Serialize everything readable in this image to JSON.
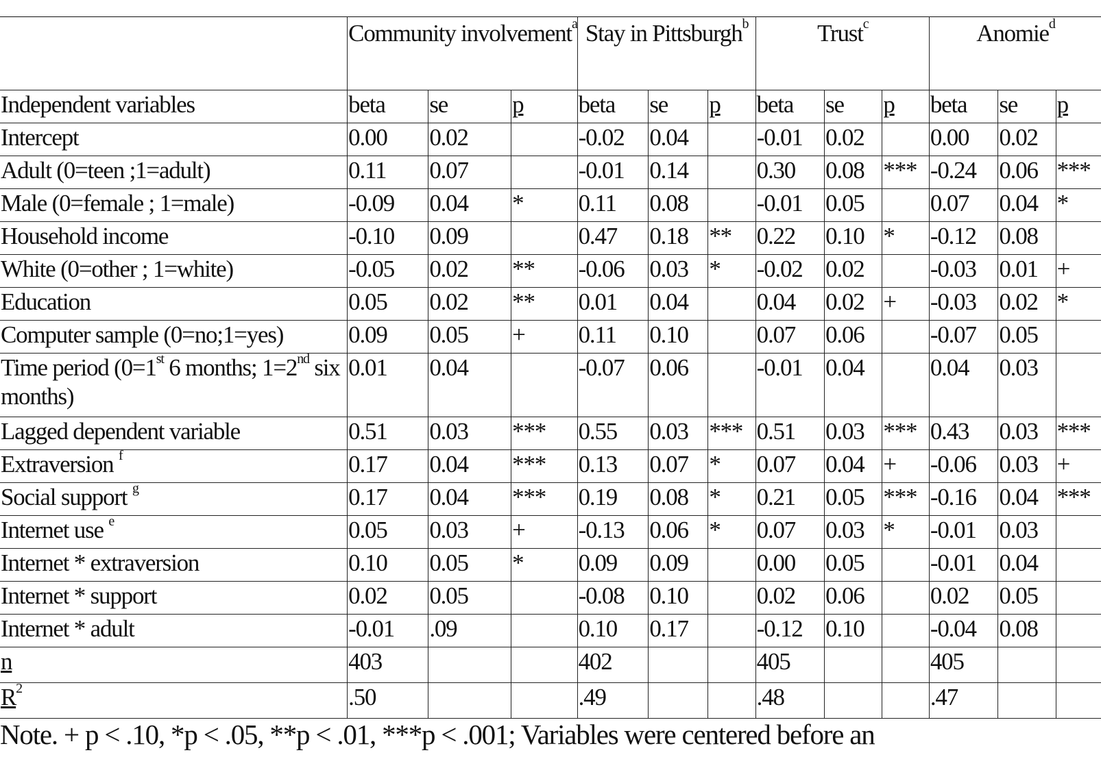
{
  "groups": [
    {
      "label": "Community involvement",
      "sup": "a"
    },
    {
      "label": "Stay in Pittsburgh",
      "sup": "b"
    },
    {
      "label": "Trust",
      "sup": "c"
    },
    {
      "label": "Anomie",
      "sup": "d"
    }
  ],
  "subheader": {
    "label": "Independent  variables",
    "cols": [
      "beta",
      "se",
      "p"
    ]
  },
  "rows": [
    {
      "label": "Intercept",
      "v": [
        "0.00",
        "0.02",
        "",
        "-0.02",
        "0.04",
        "",
        "-0.01",
        "0.02",
        "",
        "0.00",
        "0.02",
        ""
      ]
    },
    {
      "label": "Adult (0=teen ;1=adult)",
      "v": [
        "0.11",
        "0.07",
        "",
        "-0.01",
        "0.14",
        "",
        "0.30",
        "0.08",
        "***",
        "-0.24",
        "0.06",
        "***"
      ]
    },
    {
      "label": "Male (0=female ; 1=male)",
      "v": [
        "-0.09",
        "0.04",
        "*",
        "0.11",
        "0.08",
        "",
        "-0.01",
        "0.05",
        "",
        "0.07",
        "0.04",
        "*"
      ]
    },
    {
      "label": "Household income",
      "v": [
        "-0.10",
        "0.09",
        "",
        "0.47",
        "0.18",
        "**",
        "0.22",
        "0.10",
        "*",
        "-0.12",
        "0.08",
        ""
      ]
    },
    {
      "label": "White (0=other ; 1=white)",
      "v": [
        "-0.05",
        "0.02",
        "**",
        "-0.06",
        "0.03",
        "*",
        "-0.02",
        "0.02",
        "",
        "-0.03",
        "0.01",
        "+"
      ]
    },
    {
      "label": "Education",
      "v": [
        "0.05",
        "0.02",
        "**",
        "0.01",
        "0.04",
        "",
        "0.04",
        "0.02",
        "+",
        "-0.03",
        "0.02",
        "*"
      ]
    },
    {
      "label": "Computer sample (0=no;1=yes)",
      "v": [
        "0.09",
        "0.05",
        "+",
        "0.11",
        "0.10",
        "",
        "0.07",
        "0.06",
        "",
        "-0.07",
        "0.05",
        ""
      ]
    },
    {
      "label": "Time period (0=1st 6 months; 1=2nd six months)",
      "tall": true,
      "v": [
        "0.01",
        "0.04",
        "",
        "-0.07",
        "0.06",
        "",
        "-0.01",
        "0.04",
        "",
        "0.04",
        "0.03",
        ""
      ]
    },
    {
      "label": "Lagged dependent variable",
      "v": [
        "0.51",
        "0.03",
        "***",
        "0.55",
        "0.03",
        "***",
        "0.51",
        "0.03",
        "***",
        "0.43",
        "0.03",
        "***"
      ]
    },
    {
      "label": "Extraversion",
      "sup": "f",
      "v": [
        "0.17",
        "0.04",
        "***",
        "0.13",
        "0.07",
        "*",
        "0.07",
        "0.04",
        "+",
        "-0.06",
        "0.03",
        "+"
      ]
    },
    {
      "label": "Social support",
      "sup": "g",
      "v": [
        "0.17",
        "0.04",
        "***",
        "0.19",
        "0.08",
        "*",
        "0.21",
        "0.05",
        "***",
        "-0.16",
        "0.04",
        "***"
      ]
    },
    {
      "label": "Internet use",
      "sup": "e",
      "v": [
        "0.05",
        "0.03",
        "+",
        "-0.13",
        "0.06",
        "*",
        "0.07",
        "0.03",
        "*",
        "-0.01",
        "0.03",
        ""
      ]
    },
    {
      "label": "Internet * extraversion",
      "v": [
        "0.10",
        "0.05",
        "*",
        "0.09",
        "0.09",
        "",
        "0.00",
        "0.05",
        "",
        "-0.01",
        "0.04",
        ""
      ]
    },
    {
      "label": "Internet * support",
      "v": [
        "0.02",
        "0.05",
        "",
        "-0.08",
        "0.10",
        "",
        "0.02",
        "0.06",
        "",
        "0.02",
        "0.05",
        ""
      ]
    },
    {
      "label": "Internet * adult",
      "v": [
        "-0.01",
        ".09",
        "",
        "0.10",
        "0.17",
        "",
        "-0.12",
        "0.10",
        "",
        "-0.04",
        "0.08",
        ""
      ]
    }
  ],
  "stats": [
    {
      "label": "n",
      "v": [
        "403",
        "402",
        "405",
        "405"
      ]
    },
    {
      "label": "R",
      "sup": "2",
      "v": [
        ".50",
        ".49",
        ".48",
        ".47"
      ]
    }
  ],
  "note": "Note. + p < .10, *p < .05, **p < .01, ***p < .001; Variables were centered before an"
}
